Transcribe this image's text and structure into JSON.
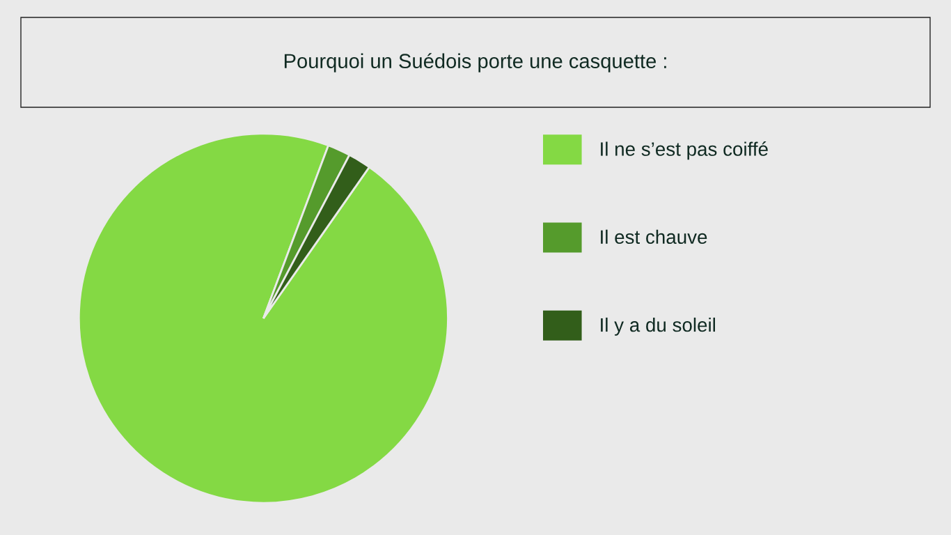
{
  "chart_data": {
    "type": "pie",
    "title": "Pourquoi un Suédois porte une casquette :",
    "categories": [
      "Il ne s’est pas coiffé",
      "Il est chauve",
      "Il y a du soleil"
    ],
    "values": [
      96,
      2,
      2
    ],
    "colors": [
      "#84d944",
      "#559b2c",
      "#325e1a"
    ],
    "legend": "right"
  }
}
